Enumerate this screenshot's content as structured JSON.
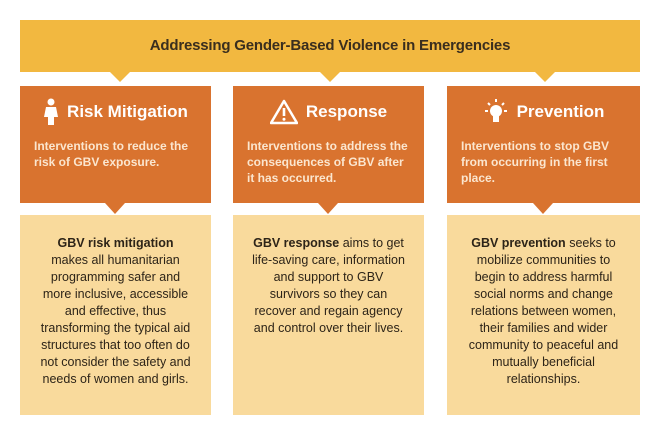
{
  "title": "Addressing Gender-Based Violence in Emergencies",
  "columns": [
    {
      "heading": "Risk Mitigation",
      "summary": "Interventions to reduce the risk of GBV exposure.",
      "detail_lead": "GBV risk mitigation",
      "detail_body": "makes all humanitarian programming  safer and more inclusive, accessible and effective, thus transforming the typical aid structures that too often do not consider the safety and needs of women and girls."
    },
    {
      "heading": "Response",
      "summary": "Interventions to address the consequences of GBV after it has occurred.",
      "detail_lead": "GBV response",
      "detail_body": "aims to get life-saving care, information and support to GBV survivors so they can recover and regain agency and control over their lives."
    },
    {
      "heading": "Prevention",
      "summary": "Interventions to stop GBV from occurring in the first place.",
      "detail_lead": "GBV prevention",
      "detail_body": "seeks to mobilize communities to begin to address harmful social norms and change relations between women, their families and wider community to peaceful and mutually beneficial relationships."
    }
  ]
}
